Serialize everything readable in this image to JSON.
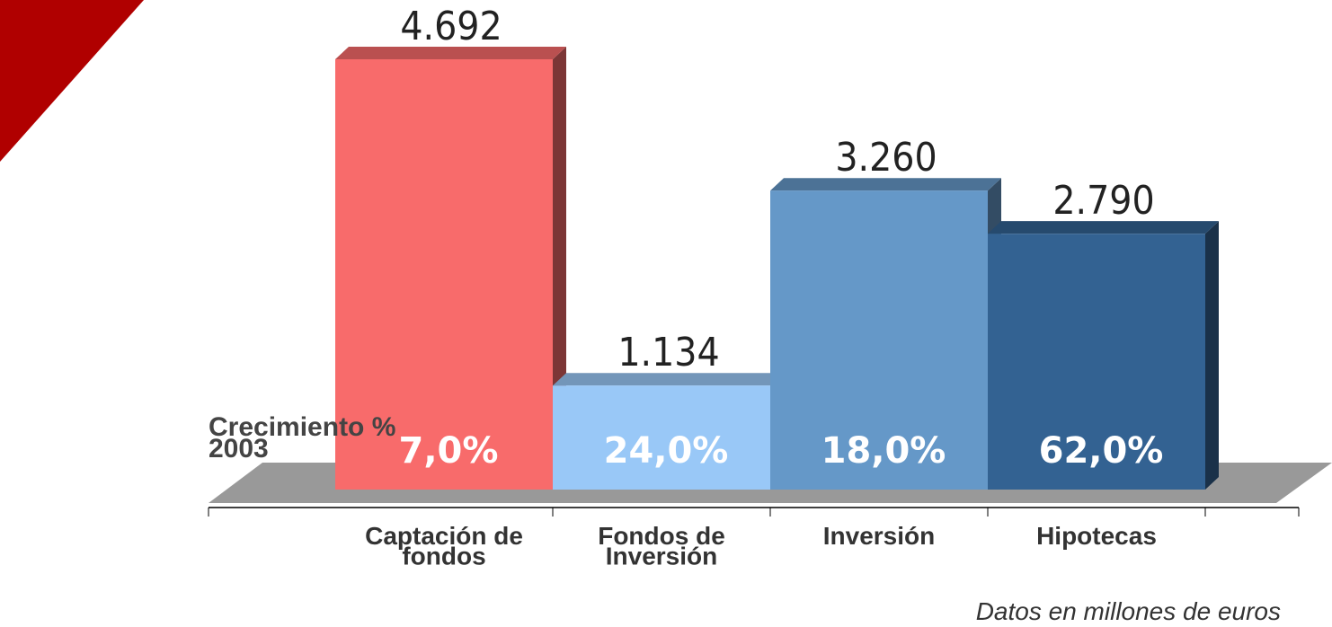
{
  "chart_data": {
    "type": "bar3d",
    "categories": [
      [
        "Captación de",
        "fondos"
      ],
      [
        "Fondos de",
        "Inversión"
      ],
      [
        "Inversión"
      ],
      [
        "Hipotecas"
      ]
    ],
    "values": [
      4692,
      1134,
      3260,
      2790
    ],
    "value_labels": [
      "4.692",
      "1.134",
      "3.260",
      "2.790"
    ],
    "colors": [
      "#f86b6b",
      "#99c8f7",
      "#6598c8",
      "#336292"
    ],
    "growth_label": [
      "Crecimiento %",
      "2003"
    ],
    "growth": [
      7.0,
      24.0,
      18.0,
      62.0
    ],
    "growth_labels": [
      "7,0%",
      "24,0%",
      "18,0%",
      "62,0%"
    ],
    "note": "Datos en millones de euros"
  }
}
